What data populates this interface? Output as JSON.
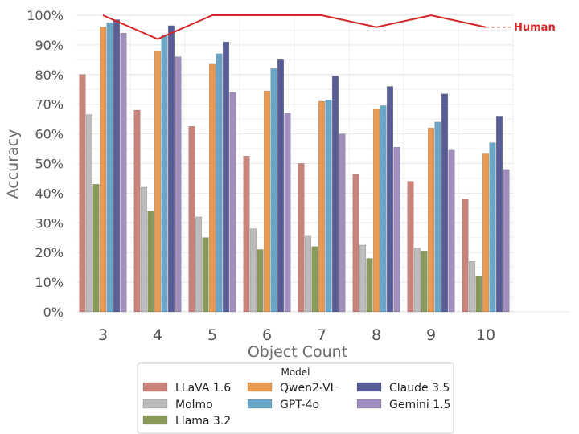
{
  "chart_data": {
    "type": "bar",
    "xlabel": "Object Count",
    "ylabel": "Accuracy",
    "categories": [
      "3",
      "4",
      "5",
      "6",
      "7",
      "8",
      "9",
      "10"
    ],
    "ylim": [
      0,
      100
    ],
    "yticks": [
      "0%",
      "10%",
      "20%",
      "30%",
      "40%",
      "50%",
      "60%",
      "70%",
      "80%",
      "90%",
      "100%"
    ],
    "grid": true,
    "legend": {
      "title": "Model",
      "position": "bottom-center"
    },
    "series": [
      {
        "name": "LLaVA 1.6",
        "color": "#c9837a",
        "values": [
          80,
          68,
          62.5,
          52.5,
          50,
          46.5,
          44,
          38
        ]
      },
      {
        "name": "Molmo",
        "color": "#bcbcbc",
        "values": [
          66.5,
          42,
          32,
          28,
          25.5,
          22.5,
          21.5,
          17
        ]
      },
      {
        "name": "Llama 3.2",
        "color": "#8a9a5b",
        "values": [
          43,
          34,
          25,
          21,
          22,
          18,
          20.5,
          12
        ]
      },
      {
        "name": "Qwen2-VL",
        "color": "#e89a54",
        "values": [
          96,
          88,
          83.5,
          74.5,
          71,
          68.5,
          62,
          53.5
        ]
      },
      {
        "name": "GPT-4o",
        "color": "#6aa6c8",
        "values": [
          97.5,
          93.5,
          87,
          82,
          71.5,
          69.5,
          64,
          57
        ]
      },
      {
        "name": "Claude 3.5",
        "color": "#585d96",
        "values": [
          98.5,
          96.5,
          91,
          85,
          79.5,
          76,
          73.5,
          66
        ]
      },
      {
        "name": "Gemini 1.5",
        "color": "#a08fbf",
        "values": [
          94,
          86,
          74,
          67,
          60,
          55.5,
          54.5,
          48
        ]
      }
    ],
    "reference_line": {
      "name": "Human",
      "color": "#d62728",
      "values": [
        100,
        92,
        100,
        100,
        100,
        96,
        100,
        96
      ]
    }
  }
}
